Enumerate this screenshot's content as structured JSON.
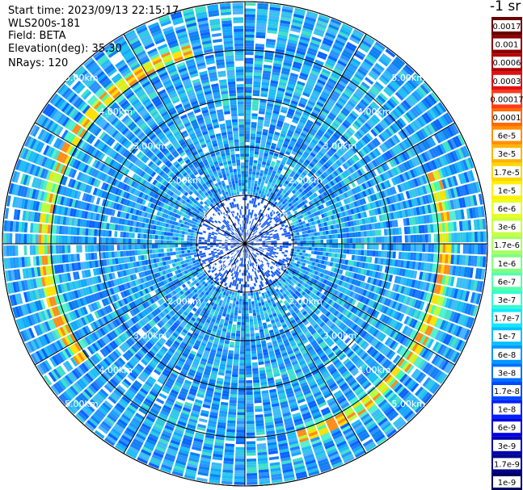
{
  "header": {
    "start_time": "Start time: 2023/09/13 22:15:17",
    "instrument": "WLS200s-181",
    "field": "Field: BETA",
    "elevation": "Elevation(deg): 35.30",
    "nrays": "NRays: 120"
  },
  "colorbar": {
    "unit_label": "-1 sr",
    "labels": [
      "0.0017",
      "0.001",
      "0.0006",
      "0.0003",
      "0.00017",
      "0.0001",
      "6e-5",
      "3e-5",
      "1.7e-5",
      "1e-5",
      "6e-6",
      "3e-6",
      "1.7e-6",
      "1e-6",
      "6e-7",
      "3e-7",
      "1.7e-7",
      "1e-7",
      "6e-8",
      "3e-8",
      "1.7e-8",
      "1e-8",
      "6e-9",
      "3e-9",
      "1.7e-9",
      "1e-9"
    ],
    "colors": [
      "#6a0000",
      "#8c0000",
      "#b30000",
      "#e01010",
      "#ff3a1a",
      "#ff6a00",
      "#ff9000",
      "#ffb400",
      "#ffd600",
      "#fff000",
      "#e8ff20",
      "#c8ff40",
      "#a8ff60",
      "#80ff80",
      "#58ffa8",
      "#30ffd0",
      "#10e8ff",
      "#00c0ff",
      "#0098ff",
      "#0070ff",
      "#0048ff",
      "#0020ff",
      "#0000e0",
      "#0000b0",
      "#000088",
      "#000060"
    ]
  },
  "chart_data": {
    "type": "polar-ppi",
    "rays": 120,
    "range_rings_km": [
      1,
      2,
      3,
      4,
      5
    ],
    "ring_labels": [
      "1.00km",
      "2.00km",
      "3.00km",
      "4.00km",
      "5.00km"
    ],
    "max_range_km": 5.0,
    "azimuth_spokes_deg": [
      0,
      30,
      60,
      90,
      120,
      150,
      180,
      210,
      240,
      270,
      300,
      330
    ],
    "field": "BETA"
  }
}
